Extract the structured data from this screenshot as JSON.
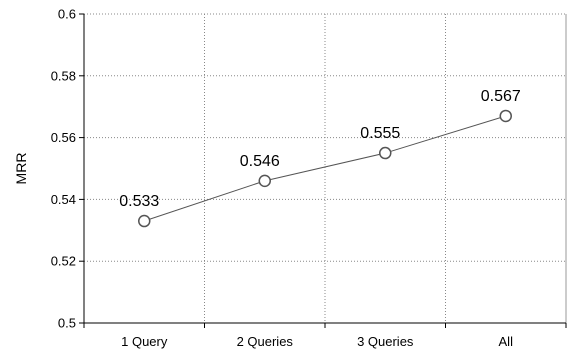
{
  "chart_data": {
    "type": "line",
    "categories": [
      "1 Query",
      "2 Queries",
      "3 Queries",
      "All"
    ],
    "series": [
      {
        "values": [
          0.533,
          0.546,
          0.555,
          0.567
        ]
      }
    ],
    "data_labels": [
      "0.533",
      "0.546",
      "0.555",
      "0.567"
    ],
    "title": "",
    "xlabel": "",
    "ylabel": "MRR",
    "ylim": [
      0.5,
      0.6
    ],
    "yticks": [
      "0.5",
      "0.52",
      "0.54",
      "0.56",
      "0.58",
      "0.6"
    ],
    "grid": true,
    "legend": "none",
    "colors": {
      "line": "#555555",
      "marker_fill": "#ffffff",
      "marker_stroke": "#555555",
      "grid": "#888888"
    }
  }
}
